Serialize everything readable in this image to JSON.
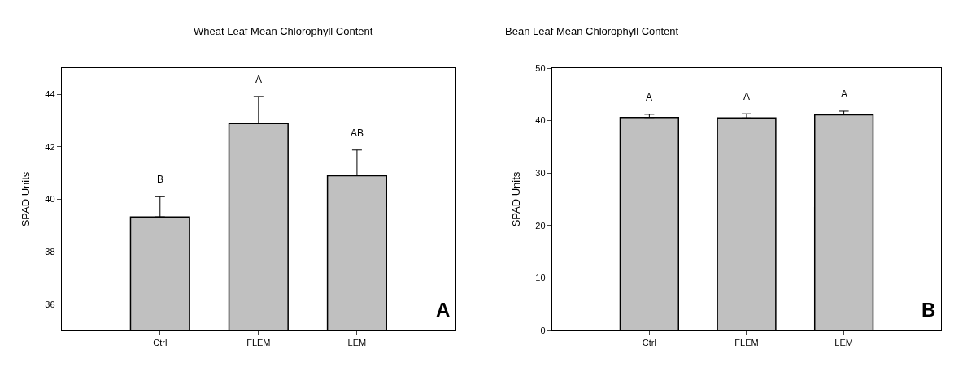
{
  "chart_data": [
    {
      "type": "bar",
      "title": "Wheat Leaf Mean Chlorophyll Content",
      "ylabel": "SPAD Units",
      "categories": [
        "Ctrl",
        "FLEM",
        "LEM"
      ],
      "values": [
        39.33,
        42.89,
        40.9
      ],
      "color": "#c0c0c0",
      "errors": [
        [
          39.33,
          40.1
        ],
        [
          42.89,
          43.92
        ],
        [
          40.9,
          41.88
        ]
      ],
      "ylim": [
        35,
        45
      ],
      "yticks": [
        36,
        38,
        40,
        42,
        44
      ],
      "annotations": [
        "B",
        "A",
        "AB",
        "A"
      ]
    },
    {
      "type": "bar",
      "title": "Bean Leaf Mean Chlorophyll Content",
      "ylabel": "SPAD Units",
      "categories": [
        "Ctrl",
        "FLEM",
        "LEM"
      ],
      "values": [
        40.6,
        40.5,
        41.1
      ],
      "color": "#c0c0c0",
      "errors": [
        [
          40.6,
          41.2
        ],
        [
          40.5,
          41.3
        ],
        [
          41.1,
          41.8
        ]
      ],
      "ylim": [
        0,
        50
      ],
      "yticks": [
        0,
        10,
        20,
        30,
        40,
        50
      ],
      "annotations": [
        "A",
        "A",
        "A",
        "B"
      ]
    }
  ]
}
